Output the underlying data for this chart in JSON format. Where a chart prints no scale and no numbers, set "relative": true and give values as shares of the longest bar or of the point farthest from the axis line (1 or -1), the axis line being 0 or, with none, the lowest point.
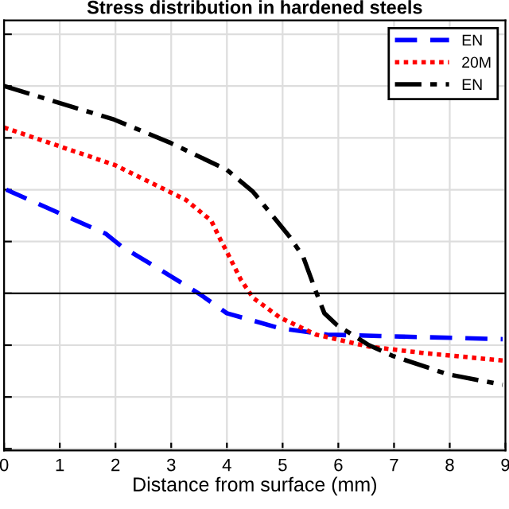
{
  "chart_data": {
    "type": "line",
    "title": "Stress distribution in hardened steels",
    "xlabel": "Distance from surface (mm)",
    "relative": true,
    "xlim": [
      0,
      9
    ],
    "xticks": [
      0,
      1,
      2,
      3,
      4,
      5,
      6,
      7,
      8,
      9
    ],
    "grid": true,
    "legend": "top right",
    "tick_labels": "x",
    "series": [
      {
        "name": "EN",
        "color": "#0000ff",
        "line_style": "dashed",
        "x": [
          0.04,
          1.83,
          2.1,
          2.78,
          3.53,
          4.0,
          4.96,
          5.8,
          6.74,
          8.95
        ],
        "values": [
          0.5,
          0.287,
          0.228,
          0.118,
          -0.007,
          -0.096,
          -0.169,
          -0.199,
          -0.206,
          -0.221
        ]
      },
      {
        "name": "20M",
        "color": "#ff0000",
        "line_style": "dotted",
        "x": [
          0,
          1.98,
          2.97,
          3.27,
          3.72,
          3.9,
          4.0,
          4.25,
          4.47,
          4.96,
          5.6,
          6.55,
          7.5,
          8.95
        ],
        "values": [
          0.8,
          0.62,
          0.49,
          0.45,
          0.35,
          0.25,
          0.2,
          0.066,
          -0.022,
          -0.118,
          -0.199,
          -0.257,
          -0.287,
          -0.324
        ]
      },
      {
        "name": "EN",
        "color": "#000000",
        "line_style": "dashdot",
        "x": [
          0,
          1.98,
          2.97,
          4.0,
          4.47,
          5.13,
          5.37,
          5.6,
          5.75,
          5.98,
          6.55,
          6.97,
          7.96,
          8.95
        ],
        "values": [
          1.0,
          0.838,
          0.728,
          0.596,
          0.49,
          0.272,
          0.176,
          0.007,
          -0.096,
          -0.154,
          -0.25,
          -0.301,
          -0.39,
          -0.441
        ]
      }
    ]
  }
}
